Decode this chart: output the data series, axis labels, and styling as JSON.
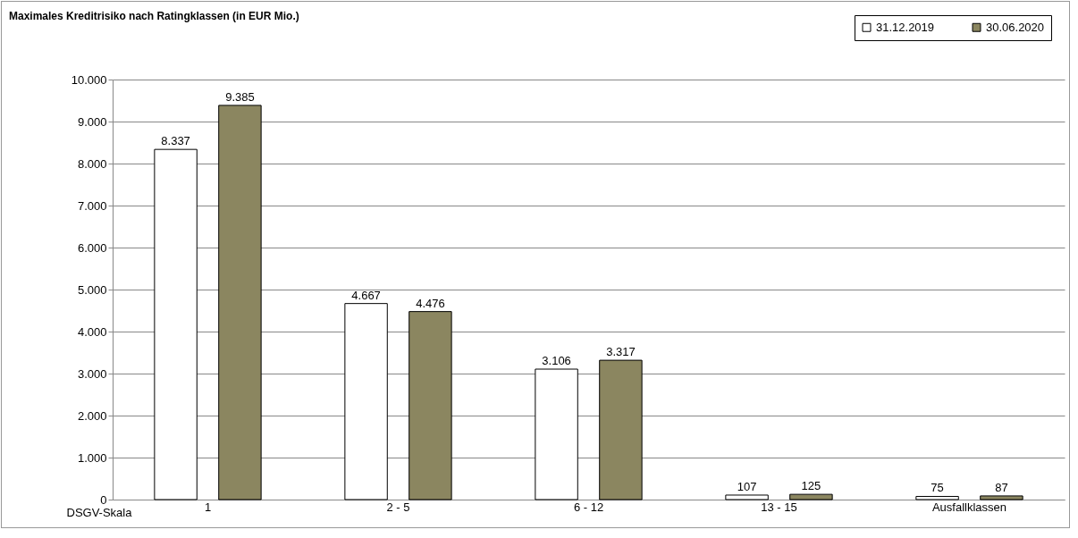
{
  "chart_data": {
    "type": "bar",
    "title": "Maximales Kreditrisiko nach Ratingklassen (in EUR Mio.)",
    "xlabel": "DSGV-Skala",
    "categories": [
      "1",
      "2 - 5",
      "6 - 12",
      "13 - 15",
      "Ausfallklassen"
    ],
    "series": [
      {
        "name": "31.12.2019",
        "color": "#ffffff",
        "values": [
          8337,
          4667,
          3106,
          107,
          75
        ],
        "value_labels": [
          "8.337",
          "4.667",
          "3.106",
          "107",
          "75"
        ]
      },
      {
        "name": "30.06.2020",
        "color": "#8b8660",
        "values": [
          9385,
          4476,
          3317,
          125,
          87
        ],
        "value_labels": [
          "9.385",
          "4.476",
          "3.317",
          "125",
          "87"
        ]
      }
    ],
    "ylim": [
      0,
      10000
    ],
    "yticks": [
      0,
      {
        "value": 1000,
        "label": "1.000"
      },
      {
        "value": 2000,
        "label": "2.000"
      },
      {
        "value": 3000,
        "label": "3.000"
      },
      {
        "value": 4000,
        "label": "4.000"
      },
      {
        "value": 5000,
        "label": "5.000"
      },
      {
        "value": 6000,
        "label": "6.000"
      },
      {
        "value": 7000,
        "label": "7.000"
      },
      {
        "value": 8000,
        "label": "8.000"
      },
      {
        "value": 9000,
        "label": "9.000"
      },
      {
        "value": 10000,
        "label": "10.000"
      }
    ],
    "grid": "y",
    "legend": "top right"
  }
}
